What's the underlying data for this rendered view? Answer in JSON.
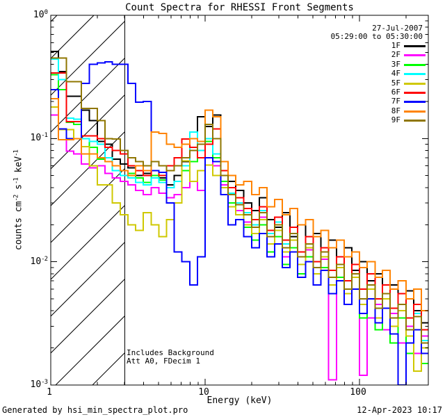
{
  "title": "Count Spectra for RHESSI Front Segments",
  "header": {
    "date": "27-Jul-2007",
    "time_range": "05:29:00 to 05:30:00"
  },
  "annotations": {
    "background": "Includes Background",
    "attenuator": "Att A0, FDecim 1"
  },
  "footer": {
    "generator": "Generated by hsi_min_spectra_plot.pro",
    "datetime": "12-Apr-2023 10:17"
  },
  "axes": {
    "xlabel": "Energy (keV)",
    "ylabel_plain": "counts cm-2 s-1 keV-1",
    "ylabel_parts": [
      {
        "t": "counts cm",
        "sup": false
      },
      {
        "t": "-2",
        "sup": true
      },
      {
        "t": " s",
        "sup": false
      },
      {
        "t": "-1",
        "sup": true
      },
      {
        "t": " keV",
        "sup": false
      },
      {
        "t": "-1",
        "sup": true
      }
    ],
    "x_tick_labels": [
      {
        "label": "1",
        "value": 1
      },
      {
        "label": "10",
        "value": 10
      },
      {
        "label": "100",
        "value": 100
      }
    ],
    "y_tick_labels": [
      {
        "base": "10",
        "exp": "0",
        "value": 1
      },
      {
        "base": "10",
        "exp": "-1",
        "value": 0.1
      },
      {
        "base": "10",
        "exp": "-2",
        "value": 0.01
      },
      {
        "base": "10",
        "exp": "-3",
        "value": 0.001
      }
    ]
  },
  "chart_data": {
    "type": "line",
    "title": "Count Spectra for RHESSI Front Segments",
    "xlabel": "Energy (keV)",
    "ylabel": "counts cm-2 s-1 keV-1",
    "xscale": "log",
    "yscale": "log",
    "xlim": [
      1,
      279
    ],
    "ylim": [
      0.001,
      1
    ],
    "step_mode": true,
    "grid": false,
    "legend_position": "top-right-inside",
    "hatched_region_keV": [
      1,
      3
    ],
    "energies_keV": [
      1.0,
      1.12,
      1.26,
      1.41,
      1.58,
      1.78,
      2.0,
      2.24,
      2.51,
      2.82,
      3.16,
      3.55,
      3.98,
      4.47,
      5.01,
      5.62,
      6.31,
      7.08,
      7.94,
      8.91,
      10.0,
      11.2,
      12.6,
      14.1,
      15.8,
      17.8,
      20.0,
      22.4,
      25.1,
      28.2,
      31.6,
      35.5,
      39.8,
      44.7,
      50.1,
      56.2,
      63.1,
      70.8,
      79.4,
      89.1,
      100,
      112,
      126,
      141,
      158,
      178,
      200,
      224,
      251,
      282
    ],
    "series": [
      {
        "name": "1F",
        "color": "#000000",
        "values": [
          0.51,
          0.35,
          0.22,
          0.22,
          0.17,
          0.14,
          0.095,
          0.09,
          0.068,
          0.062,
          0.058,
          0.05,
          0.052,
          0.055,
          0.048,
          0.042,
          0.05,
          0.065,
          0.08,
          0.15,
          0.125,
          0.155,
          0.065,
          0.045,
          0.038,
          0.03,
          0.026,
          0.033,
          0.022,
          0.019,
          0.025,
          0.016,
          0.02,
          0.014,
          0.017,
          0.013,
          0.015,
          0.011,
          0.013,
          0.0085,
          0.01,
          0.007,
          0.008,
          0.0055,
          0.0065,
          0.0045,
          0.0058,
          0.004,
          0.0032,
          0.004
        ]
      },
      {
        "name": "2F",
        "color": "#ff00ff",
        "values": [
          0.155,
          0.12,
          0.079,
          0.075,
          0.062,
          0.058,
          0.06,
          0.052,
          0.048,
          0.045,
          0.042,
          0.038,
          0.035,
          0.04,
          0.036,
          0.033,
          0.035,
          0.04,
          0.045,
          0.038,
          0.09,
          0.06,
          0.042,
          0.03,
          0.026,
          0.021,
          0.017,
          0.023,
          0.014,
          0.018,
          0.011,
          0.015,
          0.0095,
          0.0125,
          0.008,
          0.0105,
          0.0011,
          0.007,
          0.0045,
          0.006,
          0.0012,
          0.0035,
          0.0045,
          0.0028,
          0.0038,
          0.0022,
          0.003,
          0.0018,
          0.0025,
          0.0021
        ]
      },
      {
        "name": "3F",
        "color": "#00ff00",
        "values": [
          0.33,
          0.25,
          0.135,
          0.13,
          0.1,
          0.085,
          0.068,
          0.07,
          0.06,
          0.055,
          0.052,
          0.048,
          0.044,
          0.05,
          0.046,
          0.04,
          0.045,
          0.055,
          0.065,
          0.08,
          0.095,
          0.07,
          0.045,
          0.03,
          0.024,
          0.019,
          0.015,
          0.02,
          0.012,
          0.016,
          0.0095,
          0.013,
          0.008,
          0.011,
          0.0065,
          0.009,
          0.0055,
          0.0075,
          0.0045,
          0.006,
          0.0035,
          0.005,
          0.0028,
          0.0042,
          0.0022,
          0.0035,
          0.0018,
          0.0028,
          0.0015,
          0.0022
        ]
      },
      {
        "name": "4F",
        "color": "#00ffff",
        "values": [
          0.44,
          0.3,
          0.146,
          0.144,
          0.1,
          0.095,
          0.09,
          0.07,
          0.055,
          0.05,
          0.048,
          0.044,
          0.042,
          0.048,
          0.044,
          0.04,
          0.045,
          0.06,
          0.113,
          0.08,
          0.1,
          0.075,
          0.05,
          0.036,
          0.03,
          0.025,
          0.02,
          0.026,
          0.017,
          0.021,
          0.014,
          0.017,
          0.011,
          0.014,
          0.009,
          0.012,
          0.0075,
          0.0095,
          0.006,
          0.008,
          0.005,
          0.0065,
          0.0042,
          0.0055,
          0.0035,
          0.0045,
          0.0028,
          0.0038,
          0.0023,
          0.003
        ]
      },
      {
        "name": "5F",
        "color": "#cfc800",
        "values": [
          0.18,
          0.118,
          0.118,
          0.1,
          0.086,
          0.06,
          0.042,
          0.042,
          0.03,
          0.024,
          0.02,
          0.018,
          0.025,
          0.02,
          0.016,
          0.022,
          0.03,
          0.066,
          0.045,
          0.055,
          0.061,
          0.05,
          0.04,
          0.028,
          0.024,
          0.02,
          0.017,
          0.022,
          0.014,
          0.018,
          0.012,
          0.015,
          0.0095,
          0.013,
          0.008,
          0.011,
          0.0065,
          0.009,
          0.0055,
          0.0075,
          0.0045,
          0.006,
          0.0035,
          0.005,
          0.003,
          0.004,
          0.0025,
          0.0013,
          0.002,
          0.0026
        ]
      },
      {
        "name": "6F",
        "color": "#ff0000",
        "values": [
          0.34,
          0.34,
          0.137,
          0.137,
          0.105,
          0.105,
          0.1,
          0.085,
          0.08,
          0.075,
          0.06,
          0.055,
          0.05,
          0.055,
          0.05,
          0.06,
          0.07,
          0.099,
          0.085,
          0.07,
          0.09,
          0.12,
          0.055,
          0.04,
          0.033,
          0.027,
          0.022,
          0.028,
          0.018,
          0.023,
          0.015,
          0.019,
          0.012,
          0.016,
          0.01,
          0.013,
          0.0085,
          0.011,
          0.007,
          0.0095,
          0.006,
          0.008,
          0.005,
          0.0065,
          0.0042,
          0.0055,
          0.0035,
          0.0045,
          0.0028,
          0.0038
        ]
      },
      {
        "name": "7F",
        "color": "#0000ff",
        "values": [
          0.25,
          0.12,
          0.1,
          0.1,
          0.28,
          0.4,
          0.41,
          0.42,
          0.4,
          0.4,
          0.28,
          0.197,
          0.2,
          0.055,
          0.053,
          0.03,
          0.012,
          0.01,
          0.0065,
          0.011,
          0.07,
          0.065,
          0.035,
          0.02,
          0.022,
          0.016,
          0.013,
          0.017,
          0.011,
          0.014,
          0.009,
          0.012,
          0.0075,
          0.01,
          0.0065,
          0.0085,
          0.0055,
          0.007,
          0.0045,
          0.006,
          0.0038,
          0.005,
          0.0032,
          0.0042,
          0.0026,
          0.001,
          0.0022,
          0.0028,
          0.0018,
          0.0024
        ]
      },
      {
        "name": "8F",
        "color": "#ff8300",
        "values": [
          0.21,
          0.098,
          0.098,
          0.1,
          0.075,
          0.075,
          0.07,
          0.065,
          0.06,
          0.055,
          0.05,
          0.06,
          0.055,
          0.113,
          0.11,
          0.09,
          0.085,
          0.09,
          0.1,
          0.095,
          0.17,
          0.15,
          0.065,
          0.05,
          0.042,
          0.045,
          0.035,
          0.04,
          0.028,
          0.032,
          0.024,
          0.027,
          0.02,
          0.022,
          0.016,
          0.018,
          0.013,
          0.015,
          0.011,
          0.012,
          0.009,
          0.01,
          0.0075,
          0.0085,
          0.006,
          0.007,
          0.005,
          0.006,
          0.004,
          0.0048
        ]
      },
      {
        "name": "9F",
        "color": "#8f7600",
        "values": [
          0.45,
          0.45,
          0.29,
          0.29,
          0.176,
          0.176,
          0.14,
          0.1,
          0.099,
          0.08,
          0.07,
          0.065,
          0.06,
          0.065,
          0.06,
          0.055,
          0.06,
          0.07,
          0.08,
          0.09,
          0.13,
          0.1,
          0.05,
          0.035,
          0.029,
          0.024,
          0.019,
          0.025,
          0.016,
          0.02,
          0.013,
          0.017,
          0.011,
          0.014,
          0.009,
          0.012,
          0.0075,
          0.0095,
          0.006,
          0.008,
          0.005,
          0.0065,
          0.0042,
          0.0055,
          0.0035,
          0.0045,
          0.0028,
          0.0036,
          0.0022,
          0.003
        ]
      }
    ]
  }
}
